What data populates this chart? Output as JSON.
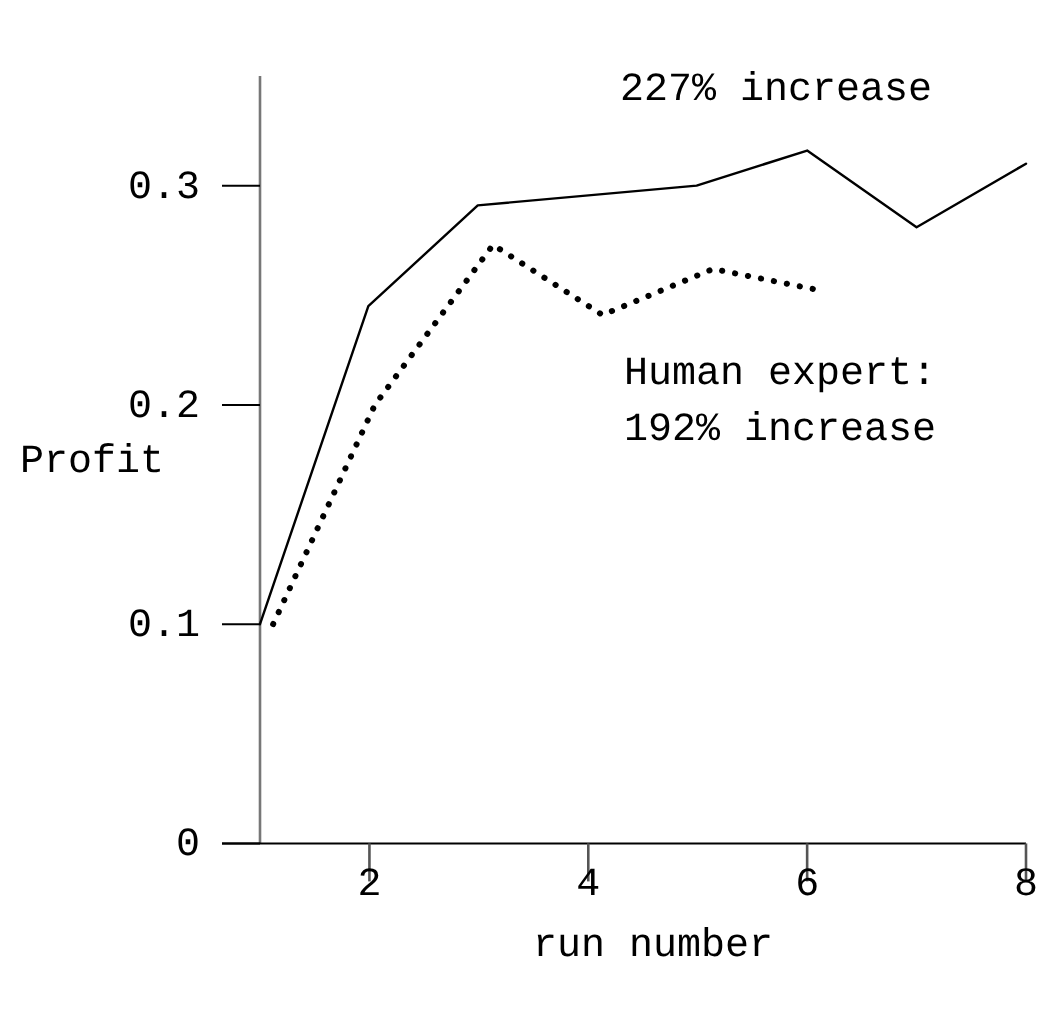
{
  "chart_data": {
    "type": "line",
    "xlabel": "run number",
    "ylabel": "Profit",
    "xlim": [
      1,
      8
    ],
    "ylim": [
      0,
      0.35
    ],
    "xticks": [
      2,
      4,
      6,
      8
    ],
    "yticks": [
      {
        "value": 0,
        "label": "0"
      },
      0.1,
      0.2,
      0.3
    ],
    "series": [
      {
        "color": "#000000",
        "line_style": "solid",
        "x": [
          1,
          1.99,
          2.99,
          4.99,
          6,
          7,
          8
        ],
        "values": [
          0.1,
          0.245,
          0.291,
          0.3,
          0.316,
          0.281,
          0.31
        ]
      },
      {
        "color": "#000000",
        "line_style": "dotted",
        "x": [
          1.12,
          2.05,
          3.13,
          4.13,
          5.14,
          6.14
        ],
        "values": [
          0.1,
          0.2,
          0.273,
          0.241,
          0.262,
          0.252
        ]
      }
    ],
    "annotations": [
      "227% increase",
      "Human expert:",
      "192% increase"
    ],
    "grid": false,
    "marker": "none"
  }
}
